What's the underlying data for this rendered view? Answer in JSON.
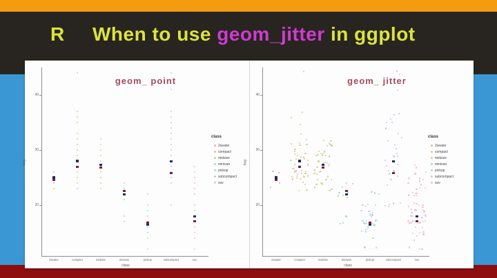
{
  "slide": {
    "logo": "R",
    "title": [
      {
        "text": "When to use ",
        "color": "#dce43c"
      },
      {
        "text": "geom_jitter",
        "color": "#cf3bd1"
      },
      {
        "text": " in ggplot",
        "color": "#dce43c"
      }
    ],
    "colors": {
      "top_bar": "#f59b10",
      "background": "#282420",
      "side_band": "#3b97d3",
      "bottom_bar": "#8e0e10",
      "plot_title": "#a34b59"
    }
  },
  "class_colors": {
    "2seater": "#e5b3ab",
    "compact": "#dbc89b",
    "midsize": "#cfd3a2",
    "minivan": "#abd6c9",
    "pickup": "#b9d2e2",
    "subcompact": "#cdc4e6",
    "suv": "#e8c2d4"
  },
  "dark_colors": {
    "navy": "#1f2a66",
    "maroon": "#7b1f3e"
  },
  "chart_data": [
    {
      "type": "scatter",
      "title": "geom_ point",
      "xlabel": "class",
      "ylabel": "hwy",
      "legend_title": "class",
      "yticks": [
        20,
        30,
        40
      ],
      "ylim": [
        11,
        45
      ],
      "grid": false,
      "legend_position": "right",
      "categories": [
        "2seater",
        "compact",
        "midsize",
        "minivan",
        "pickup",
        "subcompact",
        "suv"
      ],
      "values": {
        "2seater": [
          23,
          24,
          25,
          26
        ],
        "compact": [
          23,
          24,
          25,
          26,
          27,
          28,
          29,
          30,
          31,
          32,
          33,
          35,
          36,
          37,
          44
        ],
        "midsize": [
          23,
          24,
          25,
          26,
          27,
          28,
          29,
          30,
          31,
          32
        ],
        "minivan": [
          17,
          18,
          21,
          22,
          23,
          24
        ],
        "pickup": [
          12,
          14,
          15,
          16,
          17,
          18,
          19,
          20,
          22
        ],
        "subcompact": [
          20,
          24,
          25,
          26,
          27,
          28,
          29,
          30,
          31,
          32,
          33,
          34,
          35,
          36,
          37,
          41,
          44
        ],
        "suv": [
          12,
          14,
          15,
          16,
          17,
          18,
          19,
          20,
          22,
          23,
          24,
          25,
          26,
          27
        ]
      },
      "median_navy": {
        "2seater": 25,
        "compact": 28,
        "midsize": 27.3,
        "minivan": 21.9,
        "pickup": 16.4,
        "subcompact": 27.9,
        "suv": 17.9
      },
      "median_maroon": {
        "2seater": 24.6,
        "compact": 26.9,
        "midsize": 26.8,
        "minivan": 22.6,
        "pickup": 16.8,
        "subcompact": 25.8,
        "suv": 17.1
      }
    },
    {
      "type": "scatter",
      "title": "geom_ jitter",
      "xlabel": "class",
      "ylabel": "hwy",
      "legend_title": "class",
      "yticks": [
        20,
        30,
        40
      ],
      "ylim": [
        11,
        45
      ],
      "grid": false,
      "legend_position": "right",
      "categories": [
        "2seater",
        "compact",
        "midsize",
        "minivan",
        "pickup",
        "subcompact",
        "suv"
      ],
      "value_counts": {
        "2seater": [
          [
            23,
            1
          ],
          [
            24,
            1
          ],
          [
            25,
            1
          ],
          [
            26,
            2
          ]
        ],
        "compact": [
          [
            23,
            2
          ],
          [
            24,
            2
          ],
          [
            25,
            8
          ],
          [
            26,
            9
          ],
          [
            27,
            5
          ],
          [
            28,
            4
          ],
          [
            29,
            5
          ],
          [
            30,
            2
          ],
          [
            31,
            4
          ],
          [
            32,
            1
          ],
          [
            33,
            1
          ],
          [
            35,
            1
          ],
          [
            36,
            1
          ],
          [
            37,
            1
          ],
          [
            44,
            1
          ]
        ],
        "midsize": [
          [
            23,
            3
          ],
          [
            24,
            3
          ],
          [
            25,
            4
          ],
          [
            26,
            6
          ],
          [
            27,
            5
          ],
          [
            28,
            5
          ],
          [
            29,
            7
          ],
          [
            30,
            2
          ],
          [
            31,
            4
          ],
          [
            32,
            2
          ]
        ],
        "minivan": [
          [
            17,
            2
          ],
          [
            18,
            1
          ],
          [
            21,
            1
          ],
          [
            22,
            4
          ],
          [
            23,
            1
          ],
          [
            24,
            2
          ]
        ],
        "pickup": [
          [
            12,
            2
          ],
          [
            14,
            1
          ],
          [
            15,
            2
          ],
          [
            16,
            5
          ],
          [
            17,
            8
          ],
          [
            18,
            4
          ],
          [
            19,
            4
          ],
          [
            20,
            4
          ],
          [
            22,
            3
          ]
        ],
        "subcompact": [
          [
            20,
            5
          ],
          [
            24,
            1
          ],
          [
            25,
            2
          ],
          [
            26,
            7
          ],
          [
            27,
            2
          ],
          [
            28,
            2
          ],
          [
            29,
            4
          ],
          [
            30,
            1
          ],
          [
            31,
            1
          ],
          [
            32,
            2
          ],
          [
            33,
            1
          ],
          [
            34,
            1
          ],
          [
            35,
            2
          ],
          [
            36,
            2
          ],
          [
            37,
            1
          ],
          [
            41,
            1
          ],
          [
            44,
            2
          ]
        ],
        "suv": [
          [
            12,
            3
          ],
          [
            14,
            2
          ],
          [
            15,
            4
          ],
          [
            16,
            2
          ],
          [
            17,
            12
          ],
          [
            18,
            6
          ],
          [
            19,
            7
          ],
          [
            20,
            8
          ],
          [
            22,
            6
          ],
          [
            23,
            3
          ],
          [
            24,
            3
          ],
          [
            25,
            3
          ],
          [
            26,
            2
          ],
          [
            27,
            2
          ]
        ]
      },
      "median_navy": {
        "2seater": 25,
        "compact": 28,
        "midsize": 27.3,
        "minivan": 21.9,
        "pickup": 16.4,
        "subcompact": 27.9,
        "suv": 17.9
      },
      "median_maroon": {
        "2seater": 24.6,
        "compact": 26.9,
        "midsize": 26.8,
        "minivan": 22.6,
        "pickup": 16.8,
        "subcompact": 25.8,
        "suv": 17.1
      }
    }
  ]
}
